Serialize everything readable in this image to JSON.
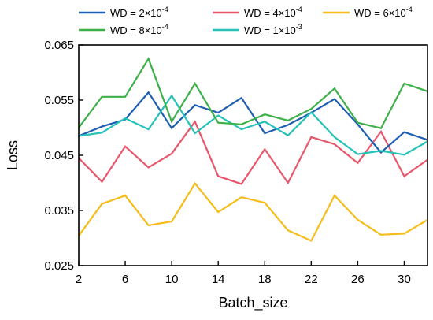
{
  "chart_data": {
    "type": "line",
    "xlabel": "Batch_size",
    "ylabel": "Loss",
    "xlim": [
      2,
      32
    ],
    "ylim": [
      0.025,
      0.065
    ],
    "x_ticks": [
      2,
      6,
      10,
      14,
      18,
      22,
      26,
      30
    ],
    "x_tick_labels": [
      "2",
      "6",
      "10",
      "14",
      "18",
      "22",
      "26",
      "30"
    ],
    "y_ticks": [
      0.025,
      0.035,
      0.045,
      0.055,
      0.065
    ],
    "y_tick_labels": [
      "0.025",
      "0.035",
      "0.045",
      "0.055",
      "0.065"
    ],
    "grid": false,
    "legend_position": "top",
    "x": [
      2,
      4,
      6,
      8,
      10,
      12,
      14,
      16,
      18,
      20,
      22,
      24,
      26,
      28,
      30,
      32
    ],
    "series": [
      {
        "name": "WD = 2×10-4",
        "legend_base": "WD = 2×10",
        "legend_exp": "-4",
        "color": "#1f5fb3",
        "values": [
          0.0485,
          0.0502,
          0.0515,
          0.0564,
          0.0499,
          0.0541,
          0.0527,
          0.0554,
          0.049,
          0.0505,
          0.0527,
          0.0552,
          0.0506,
          0.0455,
          0.0492,
          0.0478
        ]
      },
      {
        "name": "WD = 4×10-4",
        "legend_base": "WD = 4×10",
        "legend_exp": "-4",
        "color": "#e8566b",
        "values": [
          0.0445,
          0.0402,
          0.0466,
          0.0428,
          0.0453,
          0.0511,
          0.0412,
          0.0398,
          0.0461,
          0.04,
          0.0483,
          0.047,
          0.0436,
          0.0493,
          0.0412,
          0.0442
        ]
      },
      {
        "name": "WD = 6×10-4",
        "legend_base": "WD = 6×10",
        "legend_exp": "-4",
        "color": "#f5bc1a",
        "values": [
          0.0304,
          0.0362,
          0.0377,
          0.0323,
          0.033,
          0.0399,
          0.0347,
          0.0374,
          0.0364,
          0.0314,
          0.0295,
          0.0377,
          0.0333,
          0.0306,
          0.0308,
          0.0333
        ]
      },
      {
        "name": "WD = 8×10-4",
        "legend_base": "WD = 8×10",
        "legend_exp": "-4",
        "color": "#3eb049",
        "values": [
          0.05,
          0.0556,
          0.0556,
          0.0625,
          0.0511,
          0.058,
          0.0509,
          0.0506,
          0.0524,
          0.0513,
          0.0534,
          0.0571,
          0.0509,
          0.0499,
          0.058,
          0.0566
        ]
      },
      {
        "name": "WD = 1×10-3",
        "legend_base": "WD = 1×10",
        "legend_exp": "-3",
        "color": "#26c2b8",
        "values": [
          0.0485,
          0.0491,
          0.0517,
          0.0497,
          0.0558,
          0.049,
          0.0522,
          0.0497,
          0.0511,
          0.0486,
          0.0528,
          0.0483,
          0.0452,
          0.0458,
          0.0451,
          0.0475
        ]
      }
    ]
  }
}
